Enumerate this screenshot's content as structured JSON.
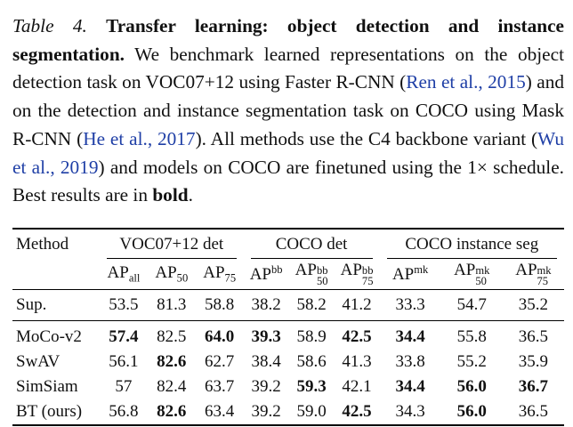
{
  "caption": {
    "label": "Table 4.",
    "title": "Transfer learning: object detection and instance segmentation.",
    "t1": " We benchmark learned representations on the object detection task on VOC07+12 using Faster R-CNN (",
    "c1": "Ren et al., 2015",
    "t2": ") and on the detection and instance segmentation task on COCO using Mask R-CNN (",
    "c2": "He et al., 2017",
    "t3": "). All methods use the C4 backbone variant (",
    "c3": "Wu et al., 2019",
    "t4": ") and models on COCO are finetuned using the 1× schedule. Best results are in ",
    "bold_word": "bold",
    "end": "."
  },
  "table": {
    "method_header": "Method",
    "groups": [
      "VOC07+12 det",
      "COCO det",
      "COCO instance seg"
    ],
    "ap": "AP",
    "metrics": [
      {
        "sub": "all",
        "sup": ""
      },
      {
        "sub": "50",
        "sup": ""
      },
      {
        "sub": "75",
        "sup": ""
      },
      {
        "sub": "",
        "sup": "bb"
      },
      {
        "sub": "50",
        "sup": "bb"
      },
      {
        "sub": "75",
        "sup": "bb"
      },
      {
        "sub": "",
        "sup": "mk"
      },
      {
        "sub": "50",
        "sup": "mk"
      },
      {
        "sub": "75",
        "sup": "mk"
      }
    ],
    "rows": [
      {
        "method": "Sup.",
        "values": [
          "53.5",
          "81.3",
          "58.8",
          "38.2",
          "58.2",
          "41.2",
          "33.3",
          "54.7",
          "35.2"
        ],
        "bold": [
          false,
          false,
          false,
          false,
          false,
          false,
          false,
          false,
          false
        ]
      },
      {
        "method": "MoCo-v2",
        "values": [
          "57.4",
          "82.5",
          "64.0",
          "39.3",
          "58.9",
          "42.5",
          "34.4",
          "55.8",
          "36.5"
        ],
        "bold": [
          true,
          false,
          true,
          true,
          false,
          true,
          true,
          false,
          false
        ]
      },
      {
        "method": "SwAV",
        "values": [
          "56.1",
          "82.6",
          "62.7",
          "38.4",
          "58.6",
          "41.3",
          "33.8",
          "55.2",
          "35.9"
        ],
        "bold": [
          false,
          true,
          false,
          false,
          false,
          false,
          false,
          false,
          false
        ]
      },
      {
        "method": "SimSiam",
        "values": [
          "57",
          "82.4",
          "63.7",
          "39.2",
          "59.3",
          "42.1",
          "34.4",
          "56.0",
          "36.7"
        ],
        "bold": [
          false,
          false,
          false,
          false,
          true,
          false,
          true,
          true,
          true
        ]
      },
      {
        "method": "BT (ours)",
        "values": [
          "56.8",
          "82.6",
          "63.4",
          "39.2",
          "59.0",
          "42.5",
          "34.3",
          "56.0",
          "36.5"
        ],
        "bold": [
          false,
          true,
          false,
          false,
          false,
          true,
          false,
          true,
          false
        ]
      }
    ]
  }
}
